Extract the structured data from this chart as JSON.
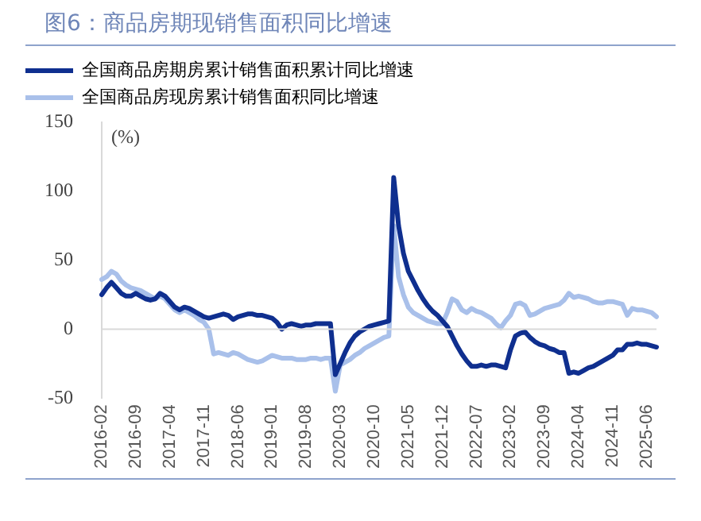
{
  "chart_data": {
    "type": "line",
    "title": "图6：商品房期现销售面积同比增速",
    "ylabel": "(%)",
    "categories": [
      "2016-02",
      null,
      null,
      null,
      null,
      null,
      null,
      "2016-09",
      null,
      null,
      null,
      null,
      null,
      null,
      "2017-04",
      null,
      null,
      null,
      null,
      null,
      null,
      "2017-11",
      null,
      null,
      null,
      null,
      null,
      null,
      "2018-06",
      null,
      null,
      null,
      null,
      null,
      null,
      "2019-01",
      null,
      null,
      null,
      null,
      null,
      null,
      "2019-08",
      null,
      null,
      null,
      null,
      null,
      null,
      "2020-03",
      null,
      null,
      null,
      null,
      null,
      null,
      "2020-10",
      null,
      null,
      null,
      null,
      null,
      null,
      "2021-05",
      null,
      null,
      null,
      null,
      null,
      null,
      "2021-12",
      null,
      null,
      null,
      null,
      null,
      null,
      "2022-07",
      null,
      null,
      null,
      null,
      null,
      null,
      "2023-02",
      null,
      null,
      null,
      null,
      null,
      null,
      "2023-09",
      null,
      null,
      null,
      null,
      null,
      null,
      "2024-04",
      null,
      null,
      null,
      null,
      null,
      null,
      "2024-11",
      null,
      null,
      null,
      null,
      null,
      null,
      "2025-06",
      null,
      null
    ],
    "series": [
      {
        "name": "全国商品房期房累计销售面积累计同比增速",
        "color": "#0f2f8f",
        "values": [
          25,
          30,
          34,
          30,
          26,
          24,
          24,
          26,
          24,
          22,
          21,
          22,
          26,
          24,
          20,
          16,
          14,
          16,
          15,
          13,
          11,
          9,
          8,
          9,
          10,
          11,
          10,
          7,
          9,
          10,
          11,
          11,
          10,
          10,
          9,
          8,
          5,
          0,
          3,
          4,
          3,
          2,
          3,
          3,
          4,
          4,
          4,
          4,
          -33,
          -25,
          -17,
          -10,
          -5,
          -2,
          0,
          2,
          3,
          4,
          5,
          6,
          110,
          75,
          55,
          42,
          35,
          28,
          22,
          17,
          13,
          10,
          6,
          2,
          -5,
          -12,
          -18,
          -23,
          -27,
          -27,
          -26,
          -27,
          -26,
          -26,
          -27,
          -28,
          -15,
          -5,
          -3,
          -2,
          -6,
          -9,
          -11,
          -12,
          -14,
          -15,
          -17,
          -17,
          -32,
          -31,
          -32,
          -30,
          -28,
          -27,
          -25,
          -23,
          -21,
          -19,
          -15,
          -15,
          -11,
          -11,
          -10,
          -11,
          -11,
          -12,
          -13
        ]
      },
      {
        "name": "全国商品房现房累计销售面积同比增速",
        "color": "#a9c0ea",
        "values": [
          36,
          38,
          42,
          40,
          35,
          32,
          30,
          29,
          28,
          26,
          24,
          22,
          24,
          22,
          18,
          14,
          12,
          14,
          12,
          10,
          7,
          5,
          0,
          -18,
          -17,
          -18,
          -19,
          -17,
          -18,
          -20,
          -22,
          -23,
          -24,
          -23,
          -21,
          -19,
          -20,
          -21,
          -21,
          -21,
          -22,
          -22,
          -22,
          -21,
          -21,
          -22,
          -21,
          -21,
          -45,
          -26,
          -24,
          -22,
          -19,
          -17,
          -14,
          -12,
          -10,
          -8,
          -6,
          -5,
          75,
          38,
          25,
          16,
          12,
          10,
          8,
          6,
          5,
          4,
          4,
          12,
          22,
          20,
          14,
          12,
          15,
          13,
          12,
          10,
          8,
          4,
          1,
          6,
          10,
          18,
          19,
          17,
          10,
          11,
          13,
          15,
          16,
          17,
          18,
          21,
          26,
          23,
          24,
          23,
          22,
          20,
          19,
          19,
          20,
          20,
          19,
          18,
          10,
          15,
          14,
          14,
          13,
          12,
          9
        ]
      }
    ],
    "ref_lines": [
      {
        "axis": "y",
        "value": 0,
        "color": "#d9d9d9"
      }
    ],
    "ylim": [
      -50,
      150
    ],
    "yticks": [
      -50,
      0,
      50,
      100,
      150
    ],
    "grid": false,
    "legend": "top left",
    "marker": "none",
    "line_style": "solid"
  }
}
